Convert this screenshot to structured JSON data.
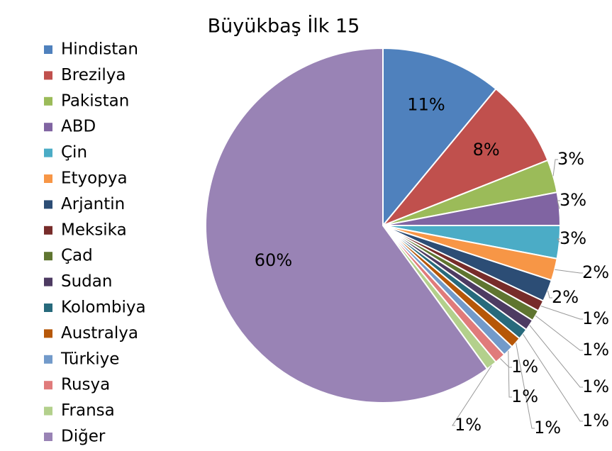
{
  "chart_data": {
    "type": "pie",
    "title": "Büyükbaş İlk 15",
    "categories": [
      "Hindistan",
      "Brezilya",
      "Pakistan",
      "ABD",
      "Çin",
      "Etyopya",
      "Arjantin",
      "Meksika",
      "Çad",
      "Sudan",
      "Kolombiya",
      "Australya",
      "Türkiye",
      "Rusya",
      "Fransa",
      "Diğer"
    ],
    "values": [
      11,
      8,
      3,
      3,
      3,
      2,
      2,
      1,
      1,
      1,
      1,
      1,
      1,
      1,
      1,
      60
    ],
    "value_labels": [
      "11%",
      "8%",
      "3%",
      "3%",
      "3%",
      "2%",
      "2%",
      "1%",
      "1%",
      "1%",
      "1%",
      "1%",
      "1%",
      "1%",
      "1%",
      "60%"
    ],
    "colors": [
      "#4f81bd",
      "#c0504d",
      "#9bbb59",
      "#8064a2",
      "#4bacc6",
      "#f79646",
      "#2c4d75",
      "#772c2a",
      "#5f7530",
      "#4d3b62",
      "#276a7c",
      "#b65708",
      "#729aca",
      "#e07b7b",
      "#b3d08c",
      "#9983b5"
    ],
    "legend": "left"
  }
}
